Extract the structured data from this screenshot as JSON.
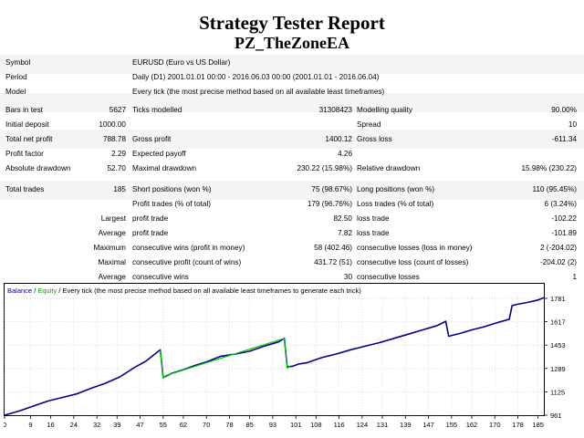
{
  "report": {
    "title": "Strategy Tester Report",
    "subtitle": "PZ_TheZoneEA"
  },
  "info": {
    "symbol_label": "Symbol",
    "symbol_value": "EURUSD (Euro vs US Dollar)",
    "period_label": "Period",
    "period_value": "Daily (D1) 2001.01.01 00:00 - 2016.06.03 00:00 (2001.01.01 - 2016.06.04)",
    "model_label": "Model",
    "model_value": "Every tick (the most precise method based on all available least timeframes)"
  },
  "stats": {
    "bars_label": "Bars in test",
    "bars_value": "5627",
    "ticks_label": "Ticks modelled",
    "ticks_value": "31308423",
    "quality_label": "Modelling quality",
    "quality_value": "90.00%",
    "deposit_label": "Initial deposit",
    "deposit_value": "1000.00",
    "spread_label": "Spread",
    "spread_value": "10",
    "net_label": "Total net profit",
    "net_value": "788.78",
    "gross_profit_label": "Gross profit",
    "gross_profit_value": "1400.12",
    "gross_loss_label": "Gross loss",
    "gross_loss_value": "-611.34",
    "pf_label": "Profit factor",
    "pf_value": "2.29",
    "payoff_label": "Expected payoff",
    "payoff_value": "4.26",
    "abs_dd_label": "Absolute drawdown",
    "abs_dd_value": "52.70",
    "max_dd_label": "Maximal drawdown",
    "max_dd_value": "230.22 (15.98%)",
    "rel_dd_label": "Relative drawdown",
    "rel_dd_value": "15.98% (230.22)"
  },
  "trades": {
    "total_label": "Total trades",
    "total_value": "185",
    "short_label": "Short positions (won %)",
    "short_value": "75 (98.67%)",
    "long_label": "Long positions (won %)",
    "long_value": "110 (95.45%)",
    "profit_trades_label": "Profit trades (% of total)",
    "profit_trades_value": "179 (96.76%)",
    "loss_trades_label": "Loss trades (% of total)",
    "loss_trades_value": "6 (3.24%)",
    "largest_label": "Largest",
    "largest_profit_label": "profit trade",
    "largest_profit_value": "82.50",
    "largest_loss_label": "loss trade",
    "largest_loss_value": "-102.22",
    "average_label": "Average",
    "average_profit_label": "profit trade",
    "average_profit_value": "7.82",
    "average_loss_label": "loss trade",
    "average_loss_value": "-101.89",
    "maximum_label": "Maximum",
    "max_wins_label": "consecutive wins (profit in money)",
    "max_wins_value": "58 (402.46)",
    "max_losses_label": "consecutive losses (loss in money)",
    "max_losses_value": "2 (-204.02)",
    "maximal_label": "Maximal",
    "maximal_profit_label": "consecutive profit (count of wins)",
    "maximal_profit_value": "431.72 (51)",
    "maximal_loss_label": "consecutive loss (count of losses)",
    "maximal_loss_value": "-204.02 (2)",
    "average2_label": "Average",
    "avg_wins_label": "consecutive wins",
    "avg_wins_value": "30",
    "avg_losses_label": "consecutive losses",
    "avg_losses_value": "1"
  },
  "chart_legend": {
    "balance": "Balance",
    "sep": " / ",
    "equity": "Equity",
    "rest": " / Every tick (the most precise method based on all available least timeframes to generate each trick)"
  },
  "colors": {
    "balance": "#00008b",
    "equity": "#00cc00",
    "grid": "#c8c8c8"
  },
  "chart_data": {
    "type": "line",
    "xlabel": "",
    "ylabel": "",
    "x_ticks": [
      "0",
      "9",
      "16",
      "24",
      "32",
      "39",
      "47",
      "55",
      "62",
      "70",
      "78",
      "85",
      "93",
      "101",
      "108",
      "116",
      "124",
      "131",
      "139",
      "147",
      "155",
      "162",
      "170",
      "178",
      "185"
    ],
    "y_ticks": [
      "1781",
      "1617",
      "1453",
      "1289",
      "1125",
      "961"
    ],
    "xlim": [
      0,
      187
    ],
    "ylim": [
      961,
      1800
    ],
    "grid": true,
    "series": [
      {
        "name": "Balance",
        "x": [
          0,
          5,
          10,
          15,
          20,
          25,
          30,
          35,
          40,
          45,
          49,
          54,
          55,
          58,
          62,
          66,
          70,
          75,
          80,
          85,
          90,
          95,
          97,
          98,
          100,
          102,
          105,
          110,
          115,
          120,
          125,
          130,
          135,
          140,
          145,
          150,
          153,
          154,
          158,
          162,
          166,
          170,
          175,
          176,
          178,
          182,
          185,
          187
        ],
        "y": [
          961,
          990,
          1025,
          1060,
          1085,
          1110,
          1150,
          1185,
          1230,
          1295,
          1340,
          1420,
          1225,
          1255,
          1280,
          1310,
          1335,
          1375,
          1390,
          1410,
          1445,
          1475,
          1500,
          1300,
          1305,
          1320,
          1330,
          1365,
          1390,
          1420,
          1445,
          1470,
          1500,
          1530,
          1560,
          1590,
          1620,
          1515,
          1535,
          1560,
          1580,
          1605,
          1635,
          1730,
          1740,
          1755,
          1770,
          1785
        ]
      },
      {
        "name": "Equity",
        "x": [
          54,
          55,
          56,
          97,
          98,
          99
        ],
        "y": [
          1420,
          1220,
          1240,
          1500,
          1290,
          1305
        ]
      }
    ]
  }
}
